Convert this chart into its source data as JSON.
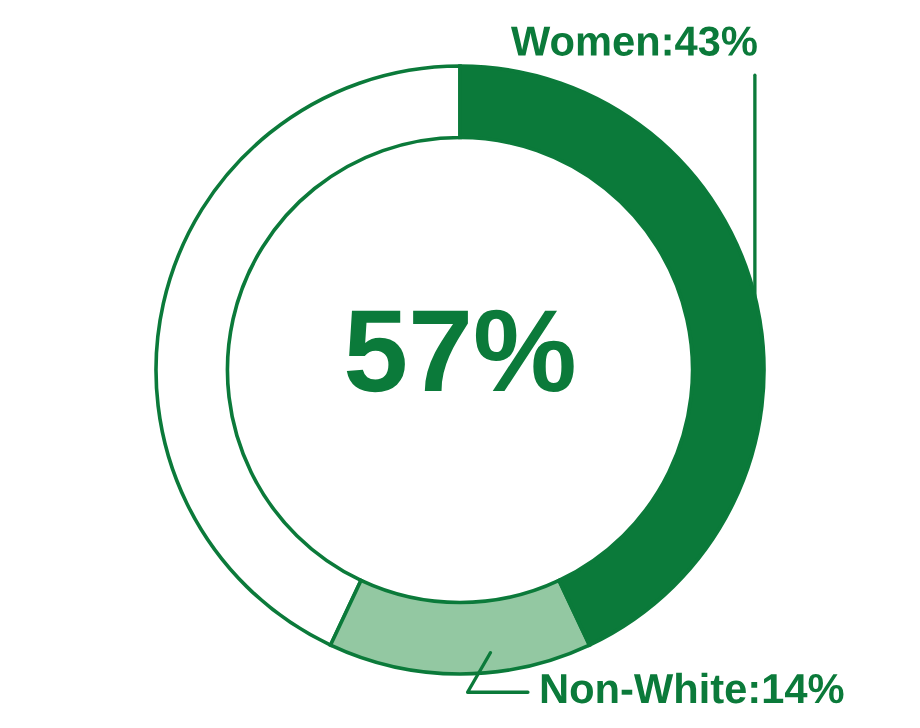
{
  "chart_data": {
    "type": "donut",
    "categories": [
      null,
      "Non-White",
      "Women"
    ],
    "values": [
      43,
      14,
      43
    ],
    "colors": [
      "#ffffff",
      "#93c8a2",
      "#0b7a3a"
    ],
    "value_labels": [
      null,
      "14%",
      "43%"
    ],
    "annotations": [
      "57%"
    ]
  }
}
